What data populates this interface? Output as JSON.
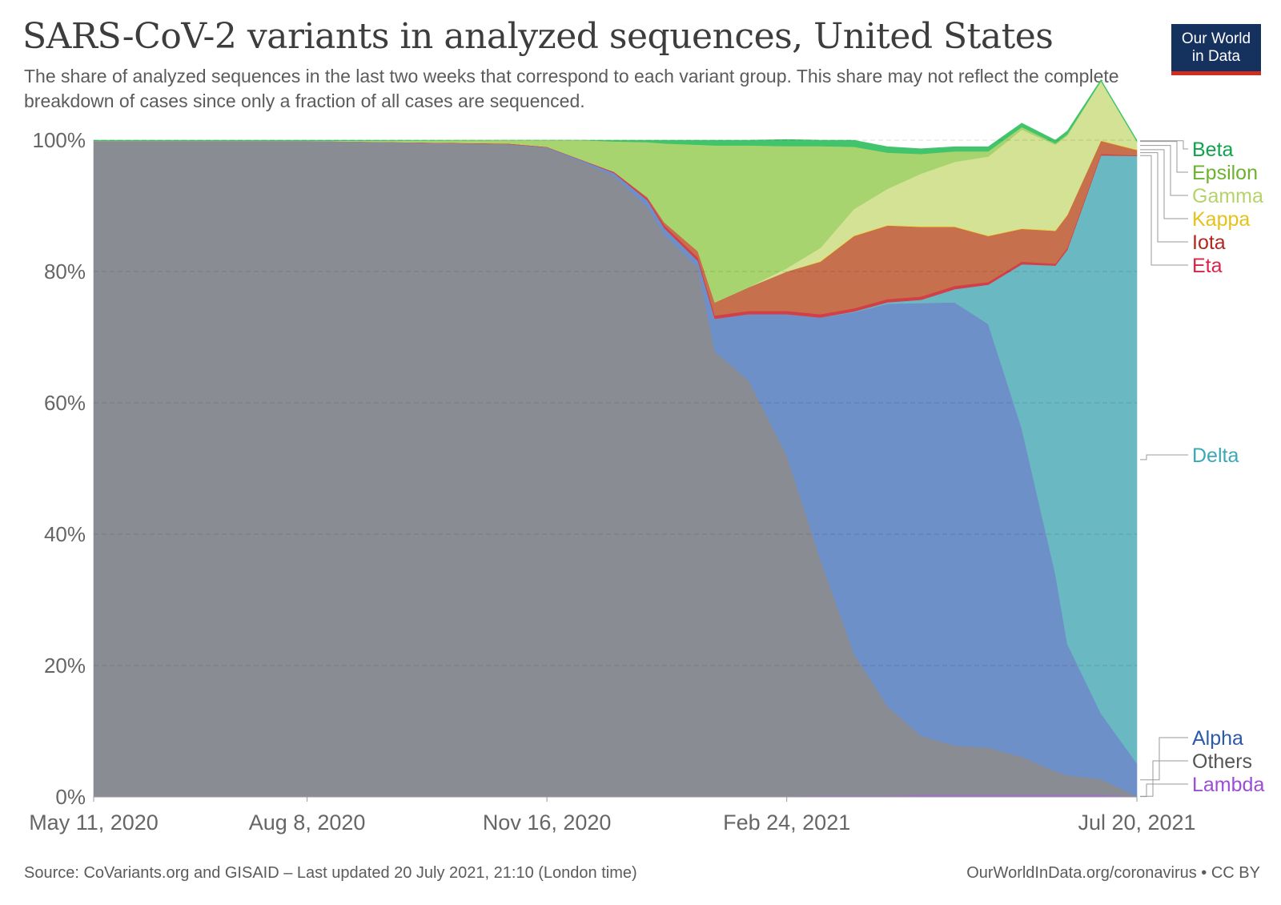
{
  "title": "SARS-CoV-2 variants in analyzed sequences, United States",
  "subtitle": "The share of analyzed sequences in the last two weeks that correspond to each variant group. This share may not reflect the complete breakdown of cases since only a fraction of all cases are sequenced.",
  "logo": {
    "line1": "Our World",
    "line2": "in Data"
  },
  "footer": {
    "source": "Source: CoVariants.org and GISAID – Last updated 20 July 2021, 21:10 (London time)",
    "credit": "OurWorldInData.org/coronavirus • CC BY"
  },
  "chart_data": {
    "type": "area",
    "stacked": true,
    "title": "SARS-CoV-2 variants in analyzed sequences, United States",
    "xlabel": "",
    "ylabel": "",
    "x_start": "2020-05-11",
    "x_end": "2021-07-20",
    "x_tick_labels": [
      "May 11, 2020",
      "Aug 8, 2020",
      "Nov 16, 2020",
      "Feb 24, 2021",
      "Jul 20, 2021"
    ],
    "y_tick_labels": [
      "0%",
      "20%",
      "40%",
      "60%",
      "80%",
      "100%"
    ],
    "ylim": [
      0,
      100
    ],
    "grid": "horizontal-dashed",
    "legend_placement": "right",
    "x": [
      "2020-05-11",
      "2020-08-08",
      "2020-10-31",
      "2020-11-16",
      "2020-11-30",
      "2020-12-14",
      "2020-12-28",
      "2021-01-04",
      "2021-01-18",
      "2021-01-25",
      "2021-02-08",
      "2021-02-24",
      "2021-03-10",
      "2021-03-24",
      "2021-04-07",
      "2021-04-21",
      "2021-05-05",
      "2021-05-19",
      "2021-06-02",
      "2021-06-16",
      "2021-06-21",
      "2021-07-05",
      "2021-07-20"
    ],
    "series": [
      {
        "name": "Lambda",
        "color": "#a36ad4",
        "values": [
          0.1,
          0.1,
          0.1,
          0.1,
          0.1,
          0.1,
          0.1,
          0.1,
          0.1,
          0.1,
          0.1,
          0.1,
          0.2,
          0.2,
          0.2,
          0.3,
          0.3,
          0.3,
          0.3,
          0.3,
          0.3,
          0.3,
          0.1
        ]
      },
      {
        "name": "Others",
        "color": "#8a8c93",
        "values": [
          99.8,
          99.8,
          99.3,
          98.7,
          96.7,
          94.4,
          89.7,
          85.5,
          80.5,
          67.7,
          63.4,
          51.9,
          36.0,
          21.6,
          13.6,
          9.0,
          7.5,
          7.2,
          5.8,
          3.6,
          3.0,
          2.4,
          0.0
        ]
      },
      {
        "name": "Alpha",
        "color": "#6e90c8",
        "values": [
          0.0,
          0.0,
          0.0,
          0.1,
          0.2,
          0.5,
          1.0,
          1.0,
          1.0,
          5.0,
          10.0,
          21.5,
          36.8,
          52.0,
          61.3,
          65.9,
          67.5,
          64.5,
          50.0,
          30.0,
          20.0,
          10.0,
          5.0
        ]
      },
      {
        "name": "Delta",
        "color": "#6ab8c1",
        "values": [
          0.0,
          0.0,
          0.0,
          0.0,
          0.0,
          0.0,
          0.0,
          0.0,
          0.0,
          0.0,
          0.0,
          0.0,
          0.0,
          0.1,
          0.2,
          0.5,
          2.0,
          6.0,
          25.0,
          47.0,
          60.0,
          85.0,
          92.5
        ]
      },
      {
        "name": "Eta",
        "color": "#d33f47",
        "values": [
          0.0,
          0.0,
          0.1,
          0.1,
          0.1,
          0.2,
          0.3,
          0.4,
          0.5,
          0.5,
          0.5,
          0.5,
          0.5,
          0.5,
          0.5,
          0.5,
          0.5,
          0.4,
          0.4,
          0.3,
          0.3,
          0.2,
          0.1
        ]
      },
      {
        "name": "Iota",
        "color": "#c6704e",
        "values": [
          0.0,
          0.0,
          0.0,
          0.0,
          0.0,
          0.0,
          0.2,
          0.5,
          1.0,
          2.0,
          3.6,
          6.0,
          8.0,
          11.0,
          11.2,
          10.6,
          9.0,
          7.0,
          5.0,
          5.0,
          5.0,
          2.0,
          0.8
        ]
      },
      {
        "name": "Kappa",
        "color": "#f2d433",
        "values": [
          0.0,
          0.0,
          0.0,
          0.0,
          0.0,
          0.0,
          0.0,
          0.0,
          0.0,
          0.0,
          0.0,
          0.0,
          0.1,
          0.1,
          0.1,
          0.1,
          0.1,
          0.1,
          0.1,
          0.1,
          0.1,
          0.1,
          0.1
        ]
      },
      {
        "name": "Gamma",
        "color": "#d3e295",
        "values": [
          0.0,
          0.0,
          0.0,
          0.0,
          0.0,
          0.0,
          0.0,
          0.0,
          0.0,
          0.0,
          0.0,
          0.5,
          2.0,
          4.0,
          5.5,
          8.0,
          9.8,
          12.0,
          15.0,
          13.0,
          12.0,
          9.0,
          1.2
        ]
      },
      {
        "name": "Epsilon",
        "color": "#a8d46f",
        "values": [
          0.0,
          0.0,
          0.5,
          1.0,
          2.9,
          4.6,
          8.4,
          12.0,
          16.2,
          23.9,
          21.6,
          18.6,
          15.5,
          9.5,
          5.5,
          3.0,
          1.6,
          0.8,
          0.4,
          0.2,
          0.2,
          0.0,
          0.0
        ]
      },
      {
        "name": "Beta",
        "color": "#41c46b",
        "values": [
          0.1,
          0.1,
          0.0,
          0.0,
          0.0,
          0.2,
          0.3,
          0.5,
          0.7,
          0.8,
          0.8,
          1.0,
          0.9,
          1.0,
          0.9,
          0.8,
          0.7,
          0.7,
          0.6,
          0.5,
          0.5,
          0.2,
          0.2
        ]
      }
    ],
    "legend_labels": [
      {
        "name": "Beta",
        "color": "#10a34b"
      },
      {
        "name": "Epsilon",
        "color": "#6cb32b"
      },
      {
        "name": "Gamma",
        "color": "#b6d36b"
      },
      {
        "name": "Kappa",
        "color": "#e6c219"
      },
      {
        "name": "Iota",
        "color": "#b3261e"
      },
      {
        "name": "Eta",
        "color": "#d9244a"
      },
      {
        "name": "Delta",
        "color": "#38a9b7"
      },
      {
        "name": "Alpha",
        "color": "#2a5aad"
      },
      {
        "name": "Others",
        "color": "#555555"
      },
      {
        "name": "Lambda",
        "color": "#9b4dd6"
      }
    ]
  }
}
